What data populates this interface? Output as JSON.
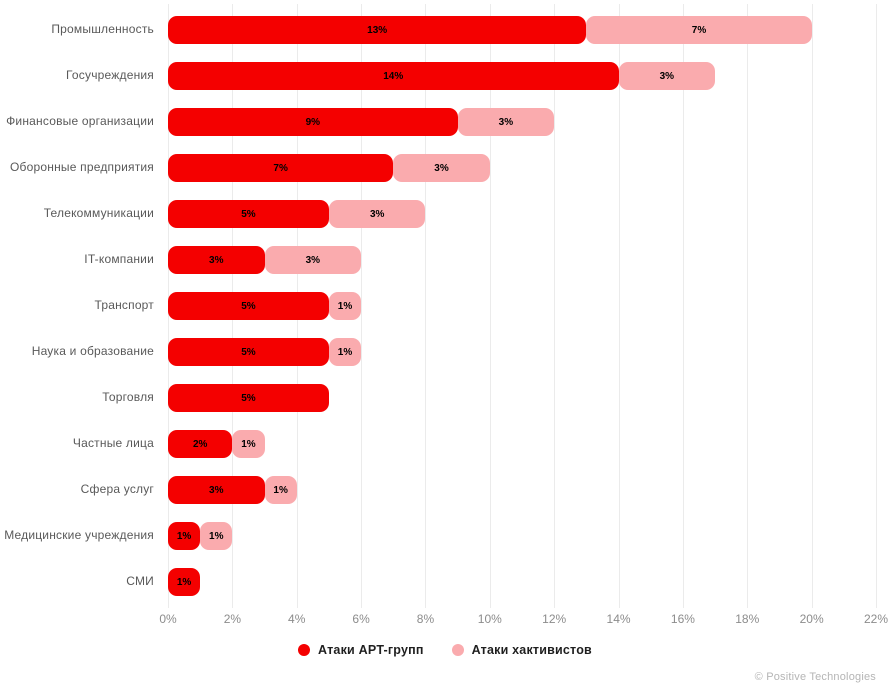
{
  "chart_data": {
    "type": "bar",
    "orientation": "horizontal-stacked",
    "title": "",
    "xlabel": "",
    "ylabel": "",
    "xlim": [
      0,
      22
    ],
    "grid": "vertical",
    "legend_position": "bottom",
    "value_label_format": "{value}%",
    "categories": [
      "Промышленность",
      "Госучреждения",
      "Финансовые организации",
      "Оборонные предприятия",
      "Телекоммуникации",
      "IT-компании",
      "Транспорт",
      "Наука и образование",
      "Торговля",
      "Частные лица",
      "Сфера услуг",
      "Медицинские учреждения",
      "СМИ"
    ],
    "series": [
      {
        "name": "Атаки APT-групп",
        "color": "#f40000",
        "values": [
          13,
          14,
          9,
          7,
          5,
          3,
          5,
          5,
          5,
          2,
          3,
          1,
          1
        ]
      },
      {
        "name": "Атаки хактивистов",
        "color": "#faabae",
        "values": [
          7,
          3,
          3,
          3,
          3,
          3,
          1,
          1,
          0,
          1,
          1,
          1,
          0
        ]
      }
    ],
    "x_ticks": [
      "0%",
      "2%",
      "4%",
      "6%",
      "8%",
      "10%",
      "12%",
      "14%",
      "16%",
      "18%",
      "20%",
      "22%"
    ]
  },
  "colors": {
    "apt_red": "#f40000",
    "hacktivist_pink": "#faabae",
    "category_label": "#595959",
    "tick_label": "#8c8c8c",
    "gridline": "#ebebeb",
    "value_label": "#000000",
    "legend_text": "#1f1f1f",
    "credit_text": "#b5b5b5"
  },
  "footer": {
    "credit": "© Positive Technologies"
  }
}
